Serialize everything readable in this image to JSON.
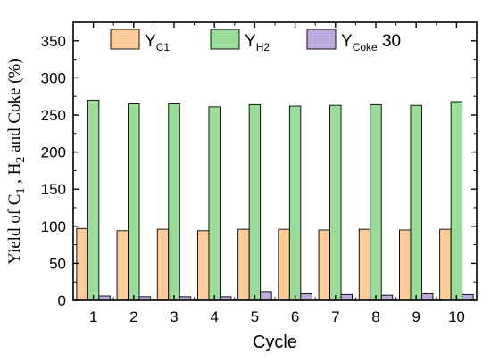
{
  "chart_data": {
    "type": "bar",
    "xlabel": "Cycle",
    "ylabel": {
      "parts": [
        "Yield of C",
        "1",
        " , H",
        "2",
        " and Coke  (%)"
      ]
    },
    "categories": [
      "1",
      "2",
      "3",
      "4",
      "5",
      "6",
      "7",
      "8",
      "9",
      "10"
    ],
    "ylim": [
      0,
      375
    ],
    "yticks": [
      0,
      50,
      100,
      150,
      200,
      250,
      300,
      350
    ],
    "series": [
      {
        "legend_main": "Y",
        "legend_sub": "C1",
        "color": "#FFCC99",
        "values": [
          97,
          94,
          96,
          94,
          96,
          96,
          95,
          96,
          95,
          96
        ]
      },
      {
        "legend_main": "Y",
        "legend_sub": "H2",
        "color": "#99DD99",
        "values": [
          270,
          265,
          265,
          261,
          264,
          262,
          263,
          264,
          263,
          268
        ]
      },
      {
        "legend_main": "Y",
        "legend_sub": "Coke",
        "legend_suffix": "  30",
        "color": "#BBAADD",
        "values": [
          6,
          5,
          5,
          5,
          11,
          9,
          8,
          7,
          9,
          8
        ]
      }
    ],
    "grid": false,
    "legend_position": "top"
  }
}
